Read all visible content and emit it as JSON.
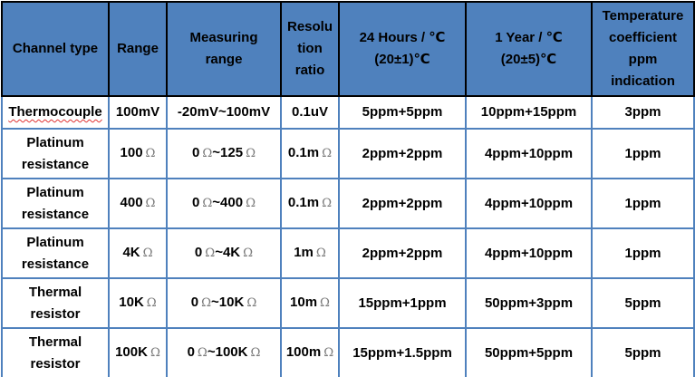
{
  "colors": {
    "header_bg": "#4F81BD",
    "header_border": "#000000",
    "body_border": "#4F81BD",
    "text": "#000000",
    "ohm_symbol": "#7a7a7a",
    "spellcheck_underline": "#e03131",
    "page_bg": "#ffffff"
  },
  "table": {
    "columns": [
      {
        "label": "Channel type"
      },
      {
        "label": "Range"
      },
      {
        "label": "Measuring\nrange"
      },
      {
        "label": "Resolu\ntion\nratio"
      },
      {
        "label": "24 Hours / ℃\n(20±1)℃"
      },
      {
        "label": "1 Year / ℃\n(20±5)℃"
      },
      {
        "label": "Temperature\ncoefficient\nppm\nindication"
      }
    ],
    "rows": [
      {
        "channel_type": "Thermocouple",
        "spellcheck": true,
        "range": "100mV",
        "measuring_range": "-20mV~100mV",
        "resolution_ratio": "0.1uV",
        "hours_24": "5ppm+5ppm",
        "year_1": "10ppm+15ppm",
        "temp_coefficient": "3ppm"
      },
      {
        "channel_type": "Platinum\nresistance",
        "spellcheck": false,
        "range": "100Ω",
        "measuring_range": "0Ω~125Ω",
        "resolution_ratio": "0.1mΩ",
        "hours_24": "2ppm+2ppm",
        "year_1": "4ppm+10ppm",
        "temp_coefficient": "1ppm"
      },
      {
        "channel_type": "Platinum\nresistance",
        "spellcheck": false,
        "range": "400Ω",
        "measuring_range": "0Ω~400Ω",
        "resolution_ratio": "0.1mΩ",
        "hours_24": "2ppm+2ppm",
        "year_1": "4ppm+10ppm",
        "temp_coefficient": "1ppm"
      },
      {
        "channel_type": "Platinum\nresistance",
        "spellcheck": false,
        "range": "4KΩ",
        "measuring_range": "0Ω~4KΩ",
        "resolution_ratio": "1mΩ",
        "hours_24": "2ppm+2ppm",
        "year_1": "4ppm+10ppm",
        "temp_coefficient": "1ppm"
      },
      {
        "channel_type": "Thermal\nresistor",
        "spellcheck": false,
        "range": "10KΩ",
        "measuring_range": "0Ω~10KΩ",
        "resolution_ratio": "10mΩ",
        "hours_24": "15ppm+1ppm",
        "year_1": "50ppm+3ppm",
        "temp_coefficient": "5ppm"
      },
      {
        "channel_type": "Thermal\nresistor",
        "spellcheck": false,
        "range": "100KΩ",
        "measuring_range": "0Ω~100KΩ",
        "resolution_ratio": "100mΩ",
        "hours_24": "15ppm+1.5ppm",
        "year_1": "50ppm+5ppm",
        "temp_coefficient": "5ppm"
      }
    ]
  }
}
